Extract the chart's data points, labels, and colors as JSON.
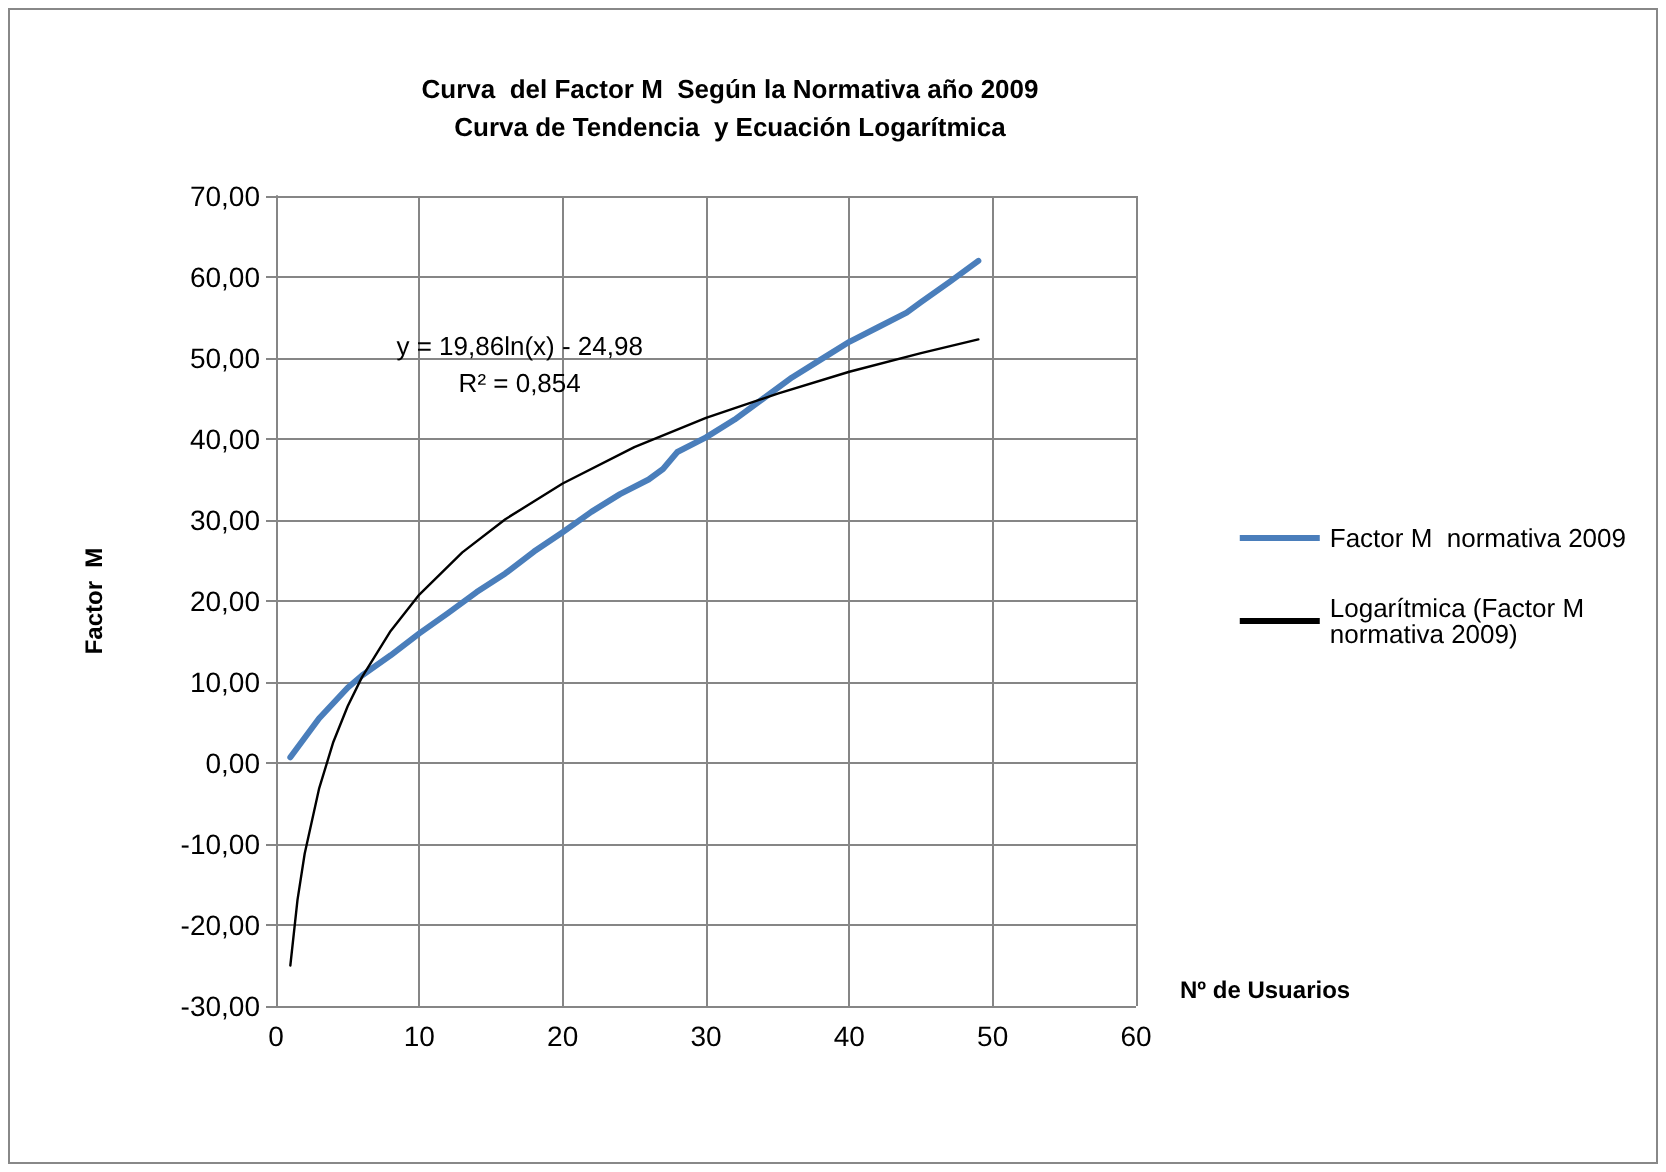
{
  "chart_data": {
    "type": "line",
    "title": "Curva  del Factor M  Según la Normativa año 2009",
    "subtitle": "Curva de Tendencia  y Ecuación Logarítmica",
    "xlabel": "Nº de Usuarios",
    "ylabel": "Factor  M",
    "annotations": [
      "y = 19,86ln(x) - 24,98",
      "R² = 0,854"
    ],
    "series": [
      {
        "name": "Factor M  normativa 2009",
        "color": "#4a7ebb",
        "x": [
          1,
          3,
          5,
          6,
          8,
          10,
          12,
          14,
          16,
          18,
          20,
          22,
          24,
          26,
          27,
          28,
          30,
          32,
          34,
          36,
          38,
          40,
          42,
          44,
          45,
          47,
          49
        ],
        "values": [
          0.7,
          5.5,
          9.3,
          10.8,
          13.3,
          16.0,
          18.5,
          21.1,
          23.4,
          26.1,
          28.5,
          31.0,
          33.2,
          35.0,
          36.3,
          38.4,
          40.2,
          42.4,
          45.0,
          47.6,
          49.8,
          52.0,
          53.8,
          55.6,
          56.9,
          59.4,
          62.0
        ]
      },
      {
        "name": "Logarítmica (Factor M normativa 2009)",
        "color": "#000000",
        "x": [
          1,
          1.5,
          2,
          3,
          4,
          5,
          6,
          8,
          10,
          13,
          16,
          20,
          25,
          30,
          35,
          40,
          45,
          49
        ],
        "values": [
          -25.0,
          -16.9,
          -11.2,
          -3.2,
          2.6,
          7.0,
          10.6,
          16.3,
          20.8,
          26.0,
          30.1,
          34.5,
          39.0,
          42.6,
          45.6,
          48.3,
          50.6,
          52.3
        ]
      }
    ],
    "xlim": [
      0,
      60
    ],
    "xticks": [
      0,
      10,
      20,
      30,
      40,
      50,
      60
    ],
    "ylim": [
      -30,
      70
    ],
    "yticks": [
      {
        "value": -30,
        "label": "-30,00"
      },
      {
        "value": -20,
        "label": "-20,00"
      },
      {
        "value": -10,
        "label": "-10,00"
      },
      {
        "value": 0,
        "label": "0,00"
      },
      {
        "value": 10,
        "label": "10,00"
      },
      {
        "value": 20,
        "label": "20,00"
      },
      {
        "value": 30,
        "label": "30,00"
      },
      {
        "value": 40,
        "label": "40,00"
      },
      {
        "value": 50,
        "label": "50,00"
      },
      {
        "value": 60,
        "label": "60,00"
      },
      {
        "value": 70,
        "label": "70,00"
      }
    ],
    "grid": true,
    "legend": "right",
    "marker": "none",
    "line_style": "solid"
  }
}
